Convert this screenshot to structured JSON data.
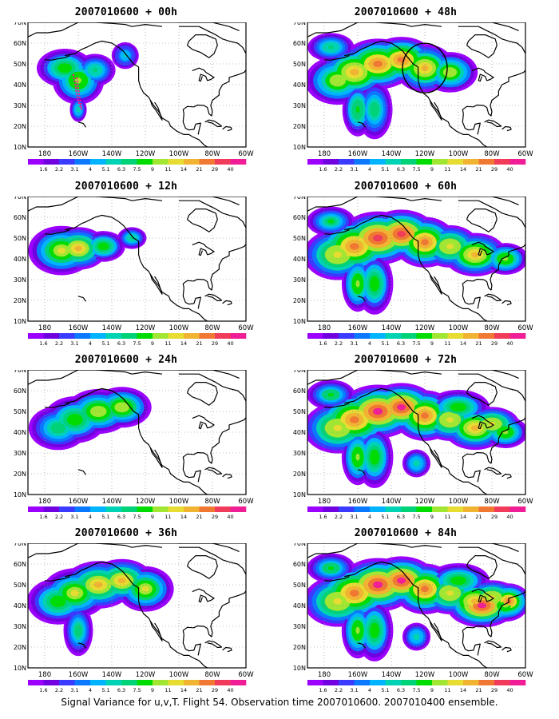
{
  "figure": {
    "caption": "Signal Variance for u,v,T. Flight 54. Observation time 2007010600. 2007010400 ensemble."
  },
  "axes": {
    "lat_labels": [
      "70N",
      "60N",
      "50N",
      "40N",
      "30N",
      "20N",
      "10N"
    ],
    "lon_labels": [
      "180",
      "160W",
      "140W",
      "120W",
      "100W",
      "80W",
      "60W"
    ]
  },
  "colorbar": {
    "labels": [
      "1.6",
      "2.2",
      "3.1",
      "4",
      "5.1",
      "6.3",
      "7.5",
      "9",
      "11",
      "14",
      "21",
      "29",
      "40"
    ],
    "colors": [
      "#9b00ff",
      "#7000e0",
      "#3b3bff",
      "#0a78ff",
      "#00b4ff",
      "#00d2b4",
      "#00d278",
      "#00dc00",
      "#a0e632",
      "#e6dc32",
      "#f0b432",
      "#f07832",
      "#f03c5a",
      "#f01e96"
    ]
  },
  "panels": [
    {
      "title": "2007010600 + 00h",
      "lead_hours": 0
    },
    {
      "title": "2007010600 + 48h",
      "lead_hours": 48
    },
    {
      "title": "2007010600 + 12h",
      "lead_hours": 12
    },
    {
      "title": "2007010600 + 60h",
      "lead_hours": 60
    },
    {
      "title": "2007010600 + 24h",
      "lead_hours": 24
    },
    {
      "title": "2007010600 + 72h",
      "lead_hours": 72
    },
    {
      "title": "2007010600 + 36h",
      "lead_hours": 36
    },
    {
      "title": "2007010600 + 84h",
      "lead_hours": 84
    }
  ]
}
